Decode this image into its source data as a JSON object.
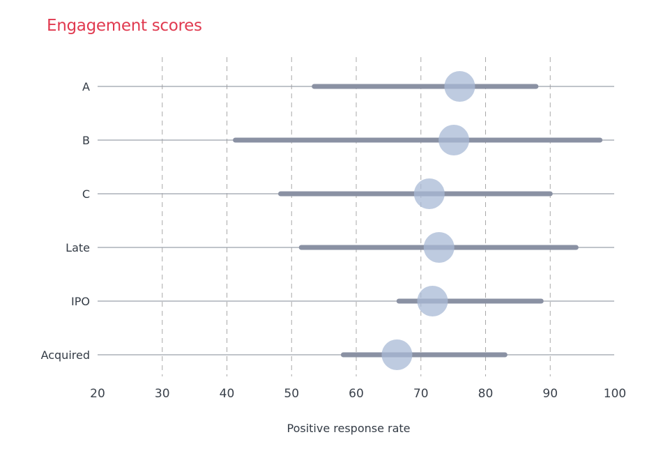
{
  "colors": {
    "title": "#e0394f",
    "range_bar": "#8a91a3",
    "median_dot": "#a8bad5",
    "row_line": "#9aa0ab",
    "grid": "#a8a8a8",
    "text": "#333b45",
    "axis_text": "#3a414b"
  },
  "chart_data": {
    "type": "dot-range",
    "title": "Engagement scores",
    "xlabel": "Positive response rate",
    "ylabel": "",
    "xlim": [
      20,
      100
    ],
    "xticks": [
      20,
      30,
      40,
      50,
      60,
      70,
      80,
      90,
      100
    ],
    "grid": "vertical dashed",
    "categories": [
      "A",
      "B",
      "C",
      "Late",
      "IPO",
      "Acquired"
    ],
    "ranges": [
      {
        "category": "A",
        "min": 53.5,
        "max": 87.8,
        "median": 76.0
      },
      {
        "category": "B",
        "min": 41.3,
        "max": 97.7,
        "median": 75.1
      },
      {
        "category": "C",
        "min": 48.3,
        "max": 90.0,
        "median": 71.3
      },
      {
        "category": "Late",
        "min": 51.5,
        "max": 94.0,
        "median": 72.8
      },
      {
        "category": "IPO",
        "min": 66.6,
        "max": 88.6,
        "median": 71.8
      },
      {
        "category": "Acquired",
        "min": 58.0,
        "max": 83.0,
        "median": 66.3
      }
    ]
  }
}
